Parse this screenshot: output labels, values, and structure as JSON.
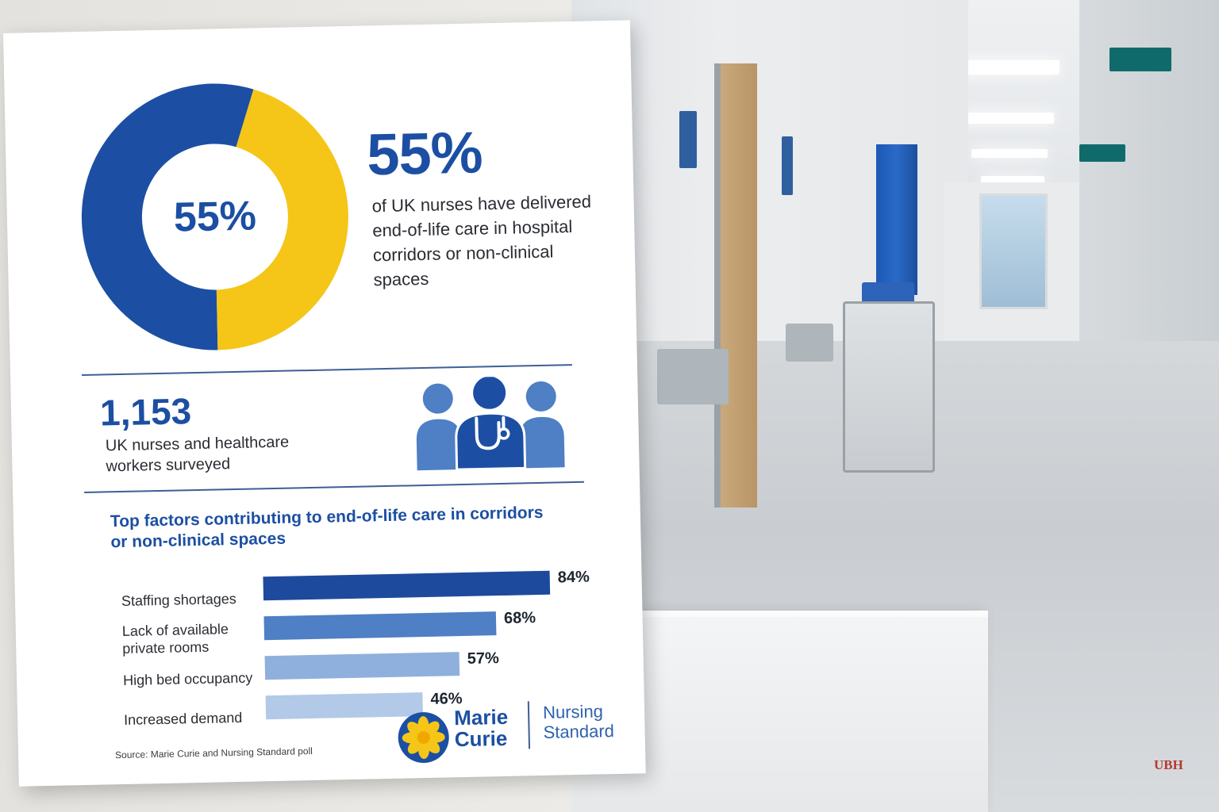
{
  "headline": {
    "percent_label": "55%",
    "description": "of UK nurses have delivered end-of-life care in hospital corridors or non-clinical spaces"
  },
  "survey": {
    "count": "1,153",
    "description": "UK nurses and healthcare workers surveyed",
    "icon": "healthcare-team-icon"
  },
  "factors": {
    "title": "Top factors contributing to end-of-life care in corridors or non-clinical spaces"
  },
  "source": "Source: Marie Curie and Nursing Standard poll",
  "logos": {
    "marie_curie": "Marie Curie",
    "nursing_standard": "Nursing Standard"
  },
  "watermark": "UBH",
  "colors": {
    "primary_blue": "#1c4fa3",
    "yellow": "#f5c518",
    "bar_dark": "#1d4a9c",
    "bar_mid": "#4f7fc4",
    "bar_light": "#8fb0dc",
    "bar_lighter": "#b2c9e8"
  },
  "chart_data": [
    {
      "type": "pie",
      "labels": [
        "",
        ""
      ],
      "values": [
        55,
        45
      ],
      "colors": [
        "#1c4fa3",
        "#f5c518"
      ],
      "center_label": "55%",
      "style": "donut"
    },
    {
      "type": "bar",
      "orientation": "horizontal",
      "categories": [
        "Staffing shortages",
        "Lack of available private rooms",
        "High bed occupancy",
        "Increased demand"
      ],
      "values": [
        84,
        68,
        57,
        46
      ],
      "value_labels": [
        "84%",
        "68%",
        "57%",
        "46%"
      ],
      "colors": [
        "#1d4a9c",
        "#4f7fc4",
        "#8fb0dc",
        "#b2c9e8"
      ],
      "xlim": [
        0,
        100
      ]
    }
  ]
}
